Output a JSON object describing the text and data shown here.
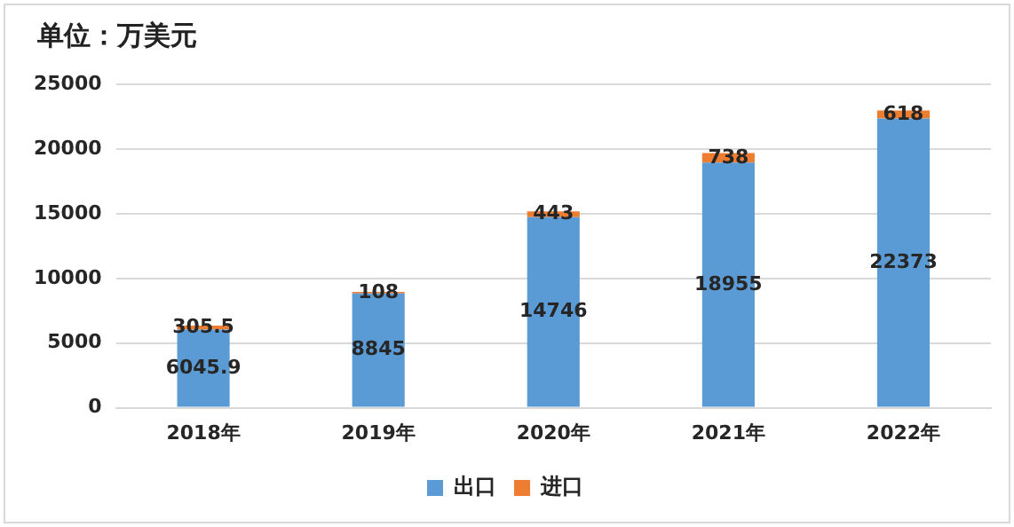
{
  "chart_data": {
    "type": "bar",
    "title": "单位：万美元",
    "categories": [
      "2018年",
      "2019年",
      "2020年",
      "2021年",
      "2022年"
    ],
    "series": [
      {
        "name": "出口",
        "color": "#5b9bd5",
        "values": [
          6045.9,
          8845,
          14746,
          18955,
          22373
        ]
      },
      {
        "name": "进口",
        "color": "#ed7d31",
        "values": [
          305.5,
          108,
          443,
          738,
          618
        ]
      }
    ],
    "stacked": true,
    "ylim": [
      0,
      25000
    ],
    "yticks": [
      0,
      5000,
      10000,
      15000,
      20000,
      25000
    ],
    "grid": "y",
    "legend": "bottom",
    "data_labels": true
  }
}
